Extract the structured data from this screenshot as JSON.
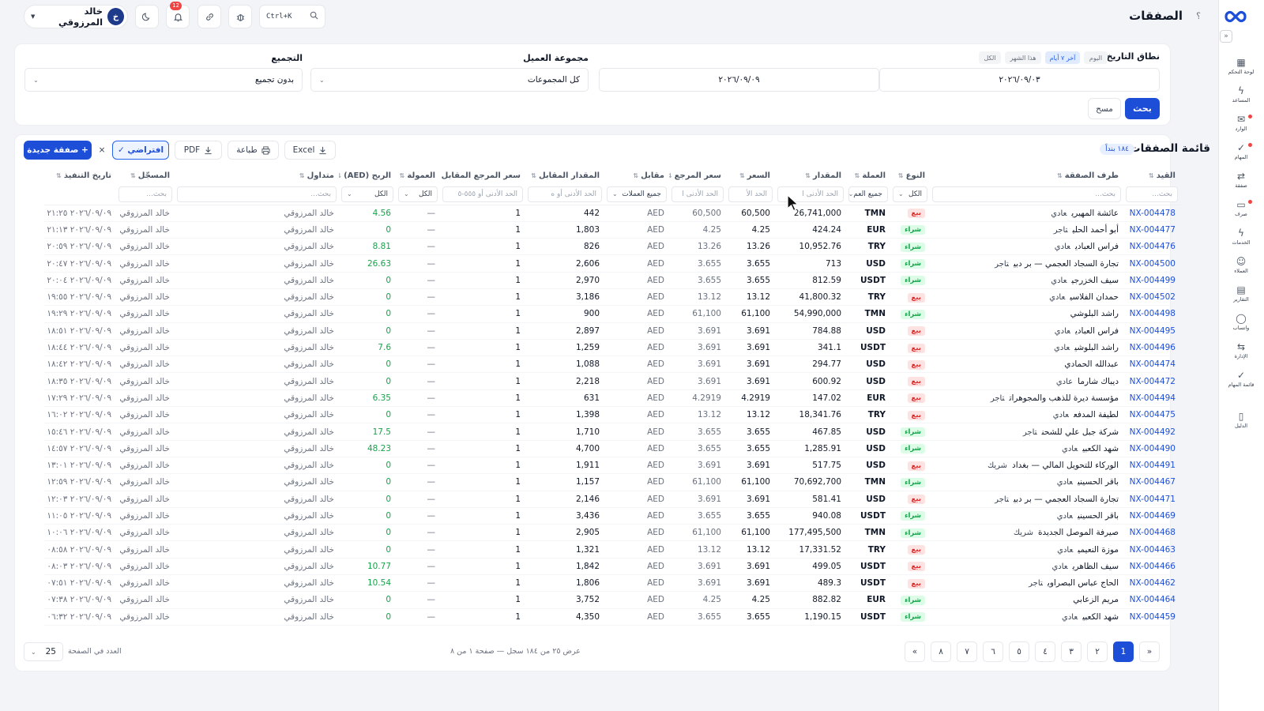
{
  "page": {
    "title": "الصفقات",
    "help": "؟"
  },
  "sidebar": {
    "items": [
      {
        "label": "لوحة التحكم",
        "icon": "dashboard-icon"
      },
      {
        "label": "المساعد",
        "icon": "assistant-icon"
      },
      {
        "label": "الوارد",
        "icon": "inbox-icon"
      },
      {
        "label": "المهام",
        "icon": "tasks-icon"
      },
      {
        "label": "صفقة",
        "icon": "deal-icon"
      },
      {
        "label": "صرف",
        "icon": "exchange-icon"
      },
      {
        "label": "الخدمات",
        "icon": "services-icon"
      },
      {
        "label": "العملاء",
        "icon": "clients-icon"
      },
      {
        "label": "التقارير",
        "icon": "reports-icon"
      },
      {
        "label": "واتساب",
        "icon": "whatsapp-icon"
      },
      {
        "label": "الإدارة",
        "icon": "admin-icon"
      },
      {
        "label": "قائمة المهام",
        "icon": "checklist-icon"
      },
      {
        "label": "الدليل",
        "icon": "guide-icon"
      }
    ]
  },
  "topbar": {
    "user_name": "خالد المرزوقي",
    "user_initial": "خ",
    "notifications_count": "12",
    "search_shortcut": "Ctrl+K"
  },
  "filters": {
    "date_range_label": "نطاق التاريخ",
    "date_chips": [
      "اليوم",
      "آخر ٧ أيام",
      "هذا الشهر",
      "الكل"
    ],
    "date_from": "٢٠٢٦/٠٩/٠٣",
    "date_to": "٢٠٢٦/٠٩/٠٩",
    "client_group_label": "مجموعة العميل",
    "client_group_value": "كل المجموعات",
    "grouping_label": "التجميع",
    "grouping_value": "بدون تجميع",
    "search_button": "بحث",
    "clear_button": "مسح"
  },
  "list": {
    "title": "قائمة الصفقات",
    "count": "١٨٤ بنداً",
    "new_button": "+ صفقة جديدة",
    "preset_button": "افتراضي ✓",
    "preset_clear": "×",
    "pdf_button": "PDF",
    "print_button": "طباعة",
    "excel_button": "Excel"
  },
  "table": {
    "headers": [
      "القيد",
      "طرف الصفقة",
      "النوع",
      "العملة",
      "المقدار",
      "السعر",
      "سعر المرجع",
      "مقابل",
      "المقدار المقابل",
      "سعر المرجع المقابل",
      "العمولة",
      "الربح (AED)",
      "متداول",
      "المسجّل",
      "تاريخ التنفيذ"
    ],
    "filter_row": [
      "بحث...",
      "بحث...",
      "الكل",
      "جميع العم",
      "الحد الأدنى ا",
      "الحد الأ",
      "الحد الأدنى ا",
      "جميع العملات",
      "الحد الأدنى أو ه",
      "الحد الأدنى أو ٥٥٥-٥",
      "الكل",
      "الكل",
      "بحث...",
      "بحث...",
      ""
    ],
    "rows": [
      {
        "ref": "NX-004478",
        "party": "عائشة المهيري",
        "ctype": "عادي",
        "type": "بيع",
        "cur": "TMN",
        "amount": "26,741,000",
        "rate": "60,500",
        "ref_rate": "60,500",
        "counter": "AED",
        "counter_amount": "442",
        "counter_ref": "1",
        "fee": "—",
        "profit": "4.56",
        "trader": "خالد المرزوقي",
        "recorder": "خالد المرزوقي",
        "date": "٢٠٢٦/٠٩/٠٩ ٢١:٢٥"
      },
      {
        "ref": "NX-004477",
        "party": "أبو أحمد الحلي",
        "ctype": "تاجر",
        "type": "شراء",
        "cur": "EUR",
        "amount": "424.24",
        "rate": "4.25",
        "ref_rate": "4.25",
        "counter": "AED",
        "counter_amount": "1,803",
        "counter_ref": "1",
        "fee": "—",
        "profit": "0",
        "trader": "خالد المرزوقي",
        "recorder": "خالد المرزوقي",
        "date": "٢٠٢٦/٠٩/٠٩ ٢١:١٣"
      },
      {
        "ref": "NX-004476",
        "party": "فراس العبادي",
        "ctype": "عادي",
        "type": "شراء",
        "cur": "TRY",
        "amount": "10,952.76",
        "rate": "13.26",
        "ref_rate": "13.26",
        "counter": "AED",
        "counter_amount": "826",
        "counter_ref": "1",
        "fee": "—",
        "profit": "8.81",
        "trader": "خالد المرزوقي",
        "recorder": "خالد المرزوقي",
        "date": "٢٠٢٦/٠٩/٠٩ ٢٠:٥٩"
      },
      {
        "ref": "NX-004500",
        "party": "تجارة السجاد العجمي — بر دبي",
        "ctype": "تاجر",
        "type": "شراء",
        "cur": "USD",
        "amount": "713",
        "rate": "3.655",
        "ref_rate": "3.655",
        "counter": "AED",
        "counter_amount": "2,606",
        "counter_ref": "1",
        "fee": "—",
        "profit": "26.63",
        "trader": "خالد المرزوقي",
        "recorder": "خالد المرزوقي",
        "date": "٢٠٢٦/٠٩/٠٩ ٢٠:٤٧"
      },
      {
        "ref": "NX-004499",
        "party": "سيف الخزرجي",
        "ctype": "عادي",
        "type": "شراء",
        "cur": "USDT",
        "amount": "812.59",
        "rate": "3.655",
        "ref_rate": "3.655",
        "counter": "AED",
        "counter_amount": "2,970",
        "counter_ref": "1",
        "fee": "—",
        "profit": "0",
        "trader": "خالد المرزوقي",
        "recorder": "خالد المرزوقي",
        "date": "٢٠٢٦/٠٩/٠٩ ٢٠:٠٤"
      },
      {
        "ref": "NX-004502",
        "party": "حمدان الفلاسي",
        "ctype": "عادي",
        "type": "بيع",
        "cur": "TRY",
        "amount": "41,800.32",
        "rate": "13.12",
        "ref_rate": "13.12",
        "counter": "AED",
        "counter_amount": "3,186",
        "counter_ref": "1",
        "fee": "—",
        "profit": "0",
        "trader": "خالد المرزوقي",
        "recorder": "خالد المرزوقي",
        "date": "٢٠٢٦/٠٩/٠٩ ١٩:٥٥"
      },
      {
        "ref": "NX-004498",
        "party": "راشد البلوشي",
        "ctype": "",
        "type": "شراء",
        "cur": "TMN",
        "amount": "54,990,000",
        "rate": "61,100",
        "ref_rate": "61,100",
        "counter": "AED",
        "counter_amount": "900",
        "counter_ref": "1",
        "fee": "—",
        "profit": "0",
        "trader": "خالد المرزوقي",
        "recorder": "خالد المرزوقي",
        "date": "٢٠٢٦/٠٩/٠٩ ١٩:٢٩"
      },
      {
        "ref": "NX-004495",
        "party": "فراس العبادي",
        "ctype": "عادي",
        "type": "بيع",
        "cur": "USD",
        "amount": "784.88",
        "rate": "3.691",
        "ref_rate": "3.691",
        "counter": "AED",
        "counter_amount": "2,897",
        "counter_ref": "1",
        "fee": "—",
        "profit": "0",
        "trader": "خالد المرزوقي",
        "recorder": "خالد المرزوقي",
        "date": "٢٠٢٦/٠٩/٠٩ ١٨:٥١"
      },
      {
        "ref": "NX-004496",
        "party": "راشد البلوشي",
        "ctype": "عادي",
        "type": "بيع",
        "cur": "USDT",
        "amount": "341.1",
        "rate": "3.691",
        "ref_rate": "3.691",
        "counter": "AED",
        "counter_amount": "1,259",
        "counter_ref": "1",
        "fee": "—",
        "profit": "7.6",
        "trader": "خالد المرزوقي",
        "recorder": "خالد المرزوقي",
        "date": "٢٠٢٦/٠٩/٠٩ ١٨:٤٤"
      },
      {
        "ref": "NX-004474",
        "party": "عبدالله الحمادي",
        "ctype": "",
        "type": "بيع",
        "cur": "USD",
        "amount": "294.77",
        "rate": "3.691",
        "ref_rate": "3.691",
        "counter": "AED",
        "counter_amount": "1,088",
        "counter_ref": "1",
        "fee": "—",
        "profit": "0",
        "trader": "خالد المرزوقي",
        "recorder": "خالد المرزوقي",
        "date": "٢٠٢٦/٠٩/٠٩ ١٨:٤٢"
      },
      {
        "ref": "NX-004472",
        "party": "ديباك شارما",
        "ctype": "عادي",
        "type": "بيع",
        "cur": "USD",
        "amount": "600.92",
        "rate": "3.691",
        "ref_rate": "3.691",
        "counter": "AED",
        "counter_amount": "2,218",
        "counter_ref": "1",
        "fee": "—",
        "profit": "0",
        "trader": "خالد المرزوقي",
        "recorder": "خالد المرزوقي",
        "date": "٢٠٢٦/٠٩/٠٩ ١٨:٣٥"
      },
      {
        "ref": "NX-004494",
        "party": "مؤسسة ديرة للذهب والمجوهرات",
        "ctype": "تاجر",
        "type": "بيع",
        "cur": "EUR",
        "amount": "147.02",
        "rate": "4.2919",
        "ref_rate": "4.2919",
        "counter": "AED",
        "counter_amount": "631",
        "counter_ref": "1",
        "fee": "—",
        "profit": "6.35",
        "trader": "خالد المرزوقي",
        "recorder": "خالد المرزوقي",
        "date": "٢٠٢٦/٠٩/٠٩ ١٧:٢٩"
      },
      {
        "ref": "NX-004475",
        "party": "لطيفة المدفع",
        "ctype": "عادي",
        "type": "بيع",
        "cur": "TRY",
        "amount": "18,341.76",
        "rate": "13.12",
        "ref_rate": "13.12",
        "counter": "AED",
        "counter_amount": "1,398",
        "counter_ref": "1",
        "fee": "—",
        "profit": "0",
        "trader": "خالد المرزوقي",
        "recorder": "خالد المرزوقي",
        "date": "٢٠٢٦/٠٩/٠٩ ١٦:٠٢"
      },
      {
        "ref": "NX-004492",
        "party": "شركة جبل علي للشحن",
        "ctype": "تاجر",
        "type": "شراء",
        "cur": "USD",
        "amount": "467.85",
        "rate": "3.655",
        "ref_rate": "3.655",
        "counter": "AED",
        "counter_amount": "1,710",
        "counter_ref": "1",
        "fee": "—",
        "profit": "17.5",
        "trader": "خالد المرزوقي",
        "recorder": "خالد المرزوقي",
        "date": "٢٠٢٦/٠٩/٠٩ ١٥:٤٦"
      },
      {
        "ref": "NX-004490",
        "party": "شهد الكعبي",
        "ctype": "عادي",
        "type": "شراء",
        "cur": "USD",
        "amount": "1,285.91",
        "rate": "3.655",
        "ref_rate": "3.655",
        "counter": "AED",
        "counter_amount": "4,700",
        "counter_ref": "1",
        "fee": "—",
        "profit": "48.23",
        "trader": "خالد المرزوقي",
        "recorder": "خالد المرزوقي",
        "date": "٢٠٢٦/٠٩/٠٩ ١٤:٥٧"
      },
      {
        "ref": "NX-004491",
        "party": "الوركاء للتحويل المالي — بغداد",
        "ctype": "شريك",
        "type": "بيع",
        "cur": "USD",
        "amount": "517.75",
        "rate": "3.691",
        "ref_rate": "3.691",
        "counter": "AED",
        "counter_amount": "1,911",
        "counter_ref": "1",
        "fee": "—",
        "profit": "0",
        "trader": "خالد المرزوقي",
        "recorder": "خالد المرزوقي",
        "date": "٢٠٢٦/٠٩/٠٩ ١٣:٠١"
      },
      {
        "ref": "NX-004467",
        "party": "باقر الحسيني",
        "ctype": "عادي",
        "type": "شراء",
        "cur": "TMN",
        "amount": "70,692,700",
        "rate": "61,100",
        "ref_rate": "61,100",
        "counter": "AED",
        "counter_amount": "1,157",
        "counter_ref": "1",
        "fee": "—",
        "profit": "0",
        "trader": "خالد المرزوقي",
        "recorder": "خالد المرزوقي",
        "date": "٢٠٢٦/٠٩/٠٩ ١٢:٥٩"
      },
      {
        "ref": "NX-004471",
        "party": "تجارة السجاد العجمي — بر دبي",
        "ctype": "تاجر",
        "type": "بيع",
        "cur": "USD",
        "amount": "581.41",
        "rate": "3.691",
        "ref_rate": "3.691",
        "counter": "AED",
        "counter_amount": "2,146",
        "counter_ref": "1",
        "fee": "—",
        "profit": "0",
        "trader": "خالد المرزوقي",
        "recorder": "خالد المرزوقي",
        "date": "٢٠٢٦/٠٩/٠٩ ١٢:٠٣"
      },
      {
        "ref": "NX-004469",
        "party": "باقر الحسيني",
        "ctype": "عادي",
        "type": "شراء",
        "cur": "USDT",
        "amount": "940.08",
        "rate": "3.655",
        "ref_rate": "3.655",
        "counter": "AED",
        "counter_amount": "3,436",
        "counter_ref": "1",
        "fee": "—",
        "profit": "0",
        "trader": "خالد المرزوقي",
        "recorder": "خالد المرزوقي",
        "date": "٢٠٢٦/٠٩/٠٩ ١١:٠٥"
      },
      {
        "ref": "NX-004468",
        "party": "صيرفة الموصل الجديدة",
        "ctype": "شريك",
        "type": "شراء",
        "cur": "TMN",
        "amount": "177,495,500",
        "rate": "61,100",
        "ref_rate": "61,100",
        "counter": "AED",
        "counter_amount": "2,905",
        "counter_ref": "1",
        "fee": "—",
        "profit": "0",
        "trader": "خالد المرزوقي",
        "recorder": "خالد المرزوقي",
        "date": "٢٠٢٦/٠٩/٠٩ ١٠:٠٦"
      },
      {
        "ref": "NX-004463",
        "party": "موزة النعيمي",
        "ctype": "عادي",
        "type": "بيع",
        "cur": "TRY",
        "amount": "17,331.52",
        "rate": "13.12",
        "ref_rate": "13.12",
        "counter": "AED",
        "counter_amount": "1,321",
        "counter_ref": "1",
        "fee": "—",
        "profit": "0",
        "trader": "خالد المرزوقي",
        "recorder": "خالد المرزوقي",
        "date": "٢٠٢٦/٠٩/٠٩ ٠٨:٥٨"
      },
      {
        "ref": "NX-004466",
        "party": "سيف الظاهري",
        "ctype": "عادي",
        "type": "بيع",
        "cur": "USDT",
        "amount": "499.05",
        "rate": "3.691",
        "ref_rate": "3.691",
        "counter": "AED",
        "counter_amount": "1,842",
        "counter_ref": "1",
        "fee": "—",
        "profit": "10.77",
        "trader": "خالد المرزوقي",
        "recorder": "خالد المرزوقي",
        "date": "٢٠٢٦/٠٩/٠٩ ٠٨:٠٣"
      },
      {
        "ref": "NX-004462",
        "party": "الحاج عباس البصراوي",
        "ctype": "تاجر",
        "type": "بيع",
        "cur": "USDT",
        "amount": "489.3",
        "rate": "3.691",
        "ref_rate": "3.691",
        "counter": "AED",
        "counter_amount": "1,806",
        "counter_ref": "1",
        "fee": "—",
        "profit": "10.54",
        "trader": "خالد المرزوقي",
        "recorder": "خالد المرزوقي",
        "date": "٢٠٢٦/٠٩/٠٩ ٠٧:٥١"
      },
      {
        "ref": "NX-004464",
        "party": "مريم الزعابي",
        "ctype": "",
        "type": "شراء",
        "cur": "EUR",
        "amount": "882.82",
        "rate": "4.25",
        "ref_rate": "4.25",
        "counter": "AED",
        "counter_amount": "3,752",
        "counter_ref": "1",
        "fee": "—",
        "profit": "0",
        "trader": "خالد المرزوقي",
        "recorder": "خالد المرزوقي",
        "date": "٢٠٢٦/٠٩/٠٩ ٠٧:٣٨"
      },
      {
        "ref": "NX-004459",
        "party": "شهد الكعبي",
        "ctype": "عادي",
        "type": "شراء",
        "cur": "USDT",
        "amount": "1,190.15",
        "rate": "3.655",
        "ref_rate": "3.655",
        "counter": "AED",
        "counter_amount": "4,350",
        "counter_ref": "1",
        "fee": "—",
        "profit": "0",
        "trader": "خالد المرزوقي",
        "recorder": "خالد المرزوقي",
        "date": "٢٠٢٦/٠٩/٠٩ ٠٦:٣٢"
      }
    ]
  },
  "pagination": {
    "pages": [
      "«",
      "1",
      "٢",
      "٣",
      "٤",
      "٥",
      "٦",
      "٧",
      "٨",
      "»"
    ],
    "active_page": "1",
    "info": "عرض ٢٥ من ١٨٤ سجل — صفحة ١ من ٨",
    "page_size_label": "العدد في الصفحة",
    "page_size": "25"
  },
  "colors": {
    "accent": "#1d4ed8",
    "sell": "#dc2626",
    "buy": "#16a34a",
    "profit": "#16a34a"
  }
}
